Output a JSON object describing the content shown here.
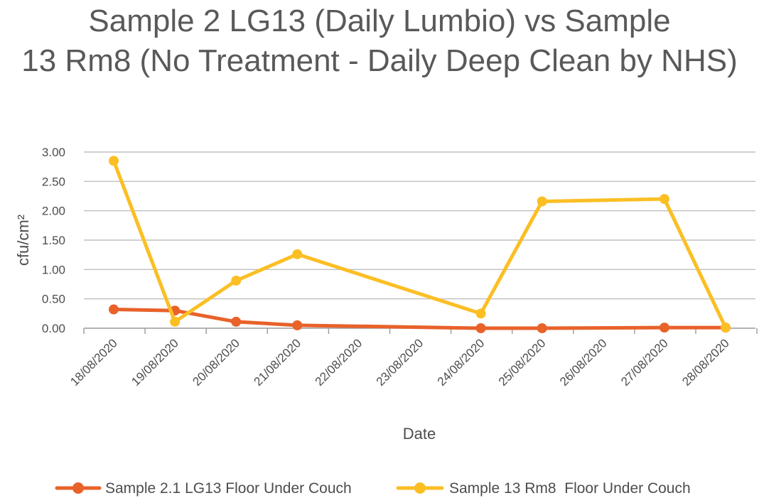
{
  "chart_data": {
    "type": "line",
    "title_lines": [
      "Sample 2 LG13 (Daily Lumbio) vs Sample",
      "13 Rm8 (No Treatment - Daily Deep Clean by NHS)"
    ],
    "xlabel": "Date",
    "ylabel": "cfu/cm²",
    "ylim": [
      0,
      3
    ],
    "yticks": [
      "0.00",
      "0.50",
      "1.00",
      "1.50",
      "2.00",
      "2.50",
      "3.00"
    ],
    "grid": true,
    "legend_position": "bottom",
    "categories": [
      "18/08/2020",
      "19/08/2020",
      "20/08/2020",
      "21/08/2020",
      "22/08/2020",
      "23/08/2020",
      "24/08/2020",
      "25/08/2020",
      "26/08/2020",
      "27/08/2020",
      "28/08/2020"
    ],
    "series": [
      {
        "name": "Sample 2.1 LG13 Floor Under Couch",
        "color": "#e8622a",
        "values": [
          0.32,
          0.3,
          0.11,
          0.05,
          null,
          null,
          0.0,
          0.0,
          null,
          0.01,
          0.01
        ]
      },
      {
        "name": "Sample 13 Rm8  Floor Under Couch",
        "color": "#fbbf24",
        "values": [
          2.85,
          0.11,
          0.81,
          1.26,
          null,
          null,
          0.25,
          2.16,
          null,
          2.2,
          0.01
        ]
      }
    ]
  }
}
